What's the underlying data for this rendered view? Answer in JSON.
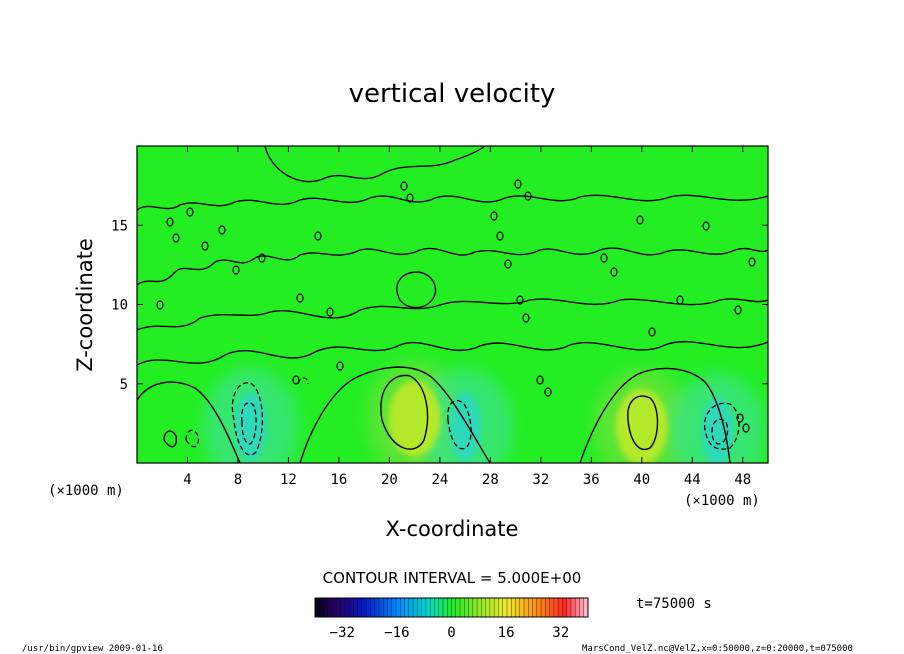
{
  "chart_data": {
    "type": "heatmap",
    "title": "vertical velocity",
    "xlabel": "X-coordinate",
    "ylabel": "Z-coordinate",
    "x_unit_left": "(×1000 m)",
    "x_unit_right": "(×1000 m)",
    "xlim": [
      0,
      50
    ],
    "ylim": [
      0,
      20
    ],
    "x_ticks": [
      "4",
      "8",
      "12",
      "16",
      "20",
      "24",
      "28",
      "32",
      "36",
      "40",
      "44",
      "48"
    ],
    "y_ticks": [
      "5",
      "10",
      "15"
    ],
    "contour_interval_label": "CONTOUR INTERVAL = 5.000E+00",
    "time_label": "t=75000 s",
    "colorbar_ticks": [
      "−32",
      "−16",
      "0",
      "16",
      "32"
    ],
    "colorbar_range": [
      -40,
      40
    ],
    "features": [
      {
        "x": 22,
        "z": 2.8,
        "value": 5,
        "sign": "positive"
      },
      {
        "x": 40,
        "z": 2.3,
        "value": 5,
        "sign": "positive"
      },
      {
        "x": 9,
        "z": 2.3,
        "value": -10,
        "sign": "negative"
      },
      {
        "x": 26,
        "z": 2.3,
        "value": -5,
        "sign": "negative"
      },
      {
        "x": 46,
        "z": 2.0,
        "value": -10,
        "sign": "negative"
      }
    ],
    "background_value": 0
  },
  "footer": {
    "left": "/usr/bin/gpview  2009-01-16",
    "right": "MarsCond_VelZ.nc@VelZ,x=0:50000,z=0:20000,t=075000"
  },
  "colors": {
    "field_background": "#22ee22",
    "positive_blob": "#b4e82c",
    "negative_blob": "#2fd9b9"
  }
}
